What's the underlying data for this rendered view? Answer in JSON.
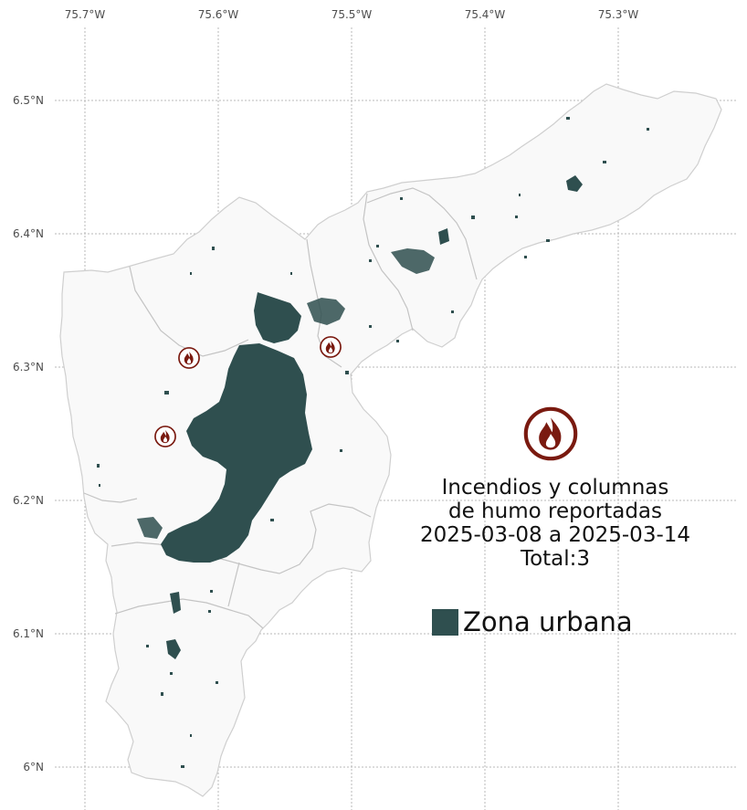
{
  "map": {
    "x_ticks": [
      "75.7°W",
      "75.6°W",
      "75.5°W",
      "75.4°W",
      "75.3°W"
    ],
    "y_ticks": [
      "6.5°N",
      "6.4°N",
      "6.3°N",
      "6.2°N",
      "6.1°N",
      "6°N"
    ],
    "grid": true,
    "fire_markers": [
      {
        "lon": -75.621,
        "lat": 6.307
      },
      {
        "lon": -75.638,
        "lat": 6.248
      },
      {
        "lon": -75.516,
        "lat": 6.315
      }
    ]
  },
  "title_block": {
    "line1": "Incendios y columnas",
    "line2": "de humo reportadas",
    "line3": "2025-03-08 a 2025-03-14",
    "line4": "Total:3"
  },
  "legend": {
    "label": "Zona urbana",
    "color": "#2f4f4f"
  },
  "colors": {
    "fire_icon": "#7a1a10",
    "urban": "#2f4f4f",
    "municipality_fill": "#f9f9f9",
    "municipality_border": "#cfcfcf"
  },
  "icons": {
    "fire_marker": "fire-icon",
    "legend_fire": "fire-icon"
  }
}
